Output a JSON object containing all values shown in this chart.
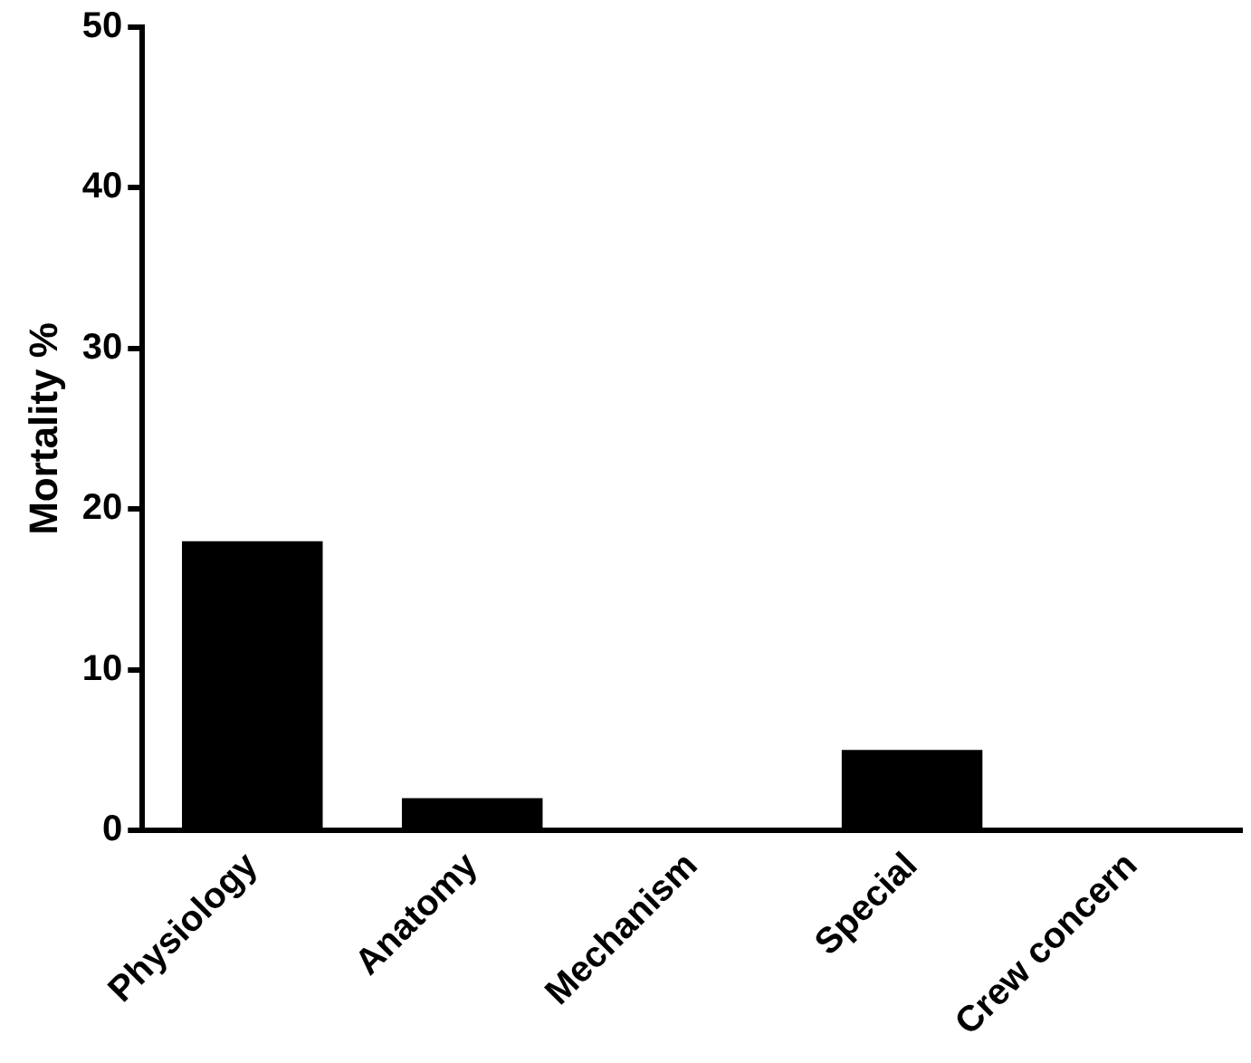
{
  "chart_data": {
    "type": "bar",
    "ylabel": "Mortality %",
    "categories": [
      "Physiology",
      "Anatomy",
      "Mechanism",
      "Special",
      "Crew concern"
    ],
    "values": [
      18,
      2,
      0,
      5,
      0
    ],
    "color": "#000000",
    "ylim": [
      0,
      50
    ],
    "yticks": [
      0,
      10,
      20,
      30,
      40,
      50
    ],
    "grid": false,
    "legend": false
  }
}
